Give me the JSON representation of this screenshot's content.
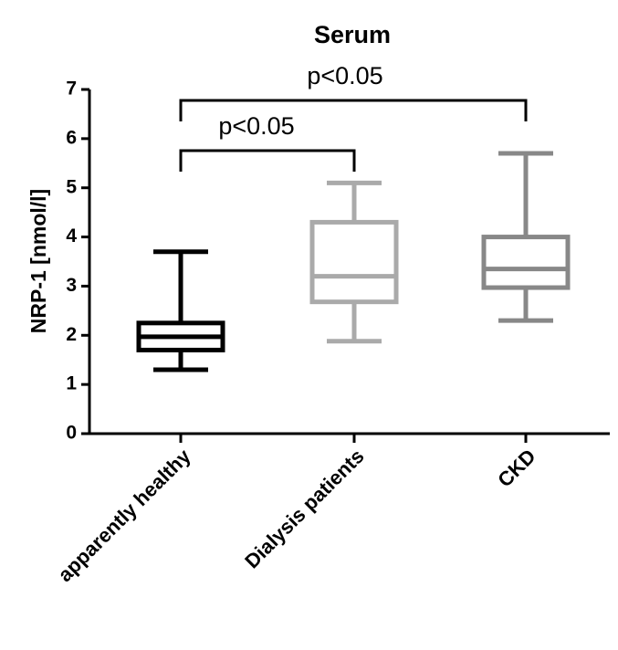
{
  "chart_data": {
    "type": "box",
    "title": "Serum",
    "ylabel": "NRP-1 [nmol/l]",
    "categories": [
      "apparently healthy",
      "Dialysis patients",
      "CKD"
    ],
    "boxes": [
      {
        "low": 1.3,
        "q1": 1.7,
        "median": 1.97,
        "q3": 2.25,
        "high": 3.7,
        "color": "#000000"
      },
      {
        "low": 1.88,
        "q1": 2.68,
        "median": 3.2,
        "q3": 4.3,
        "high": 5.1,
        "color": "#aaaaaa"
      },
      {
        "low": 2.3,
        "q1": 2.97,
        "median": 3.35,
        "q3": 4.0,
        "high": 5.7,
        "color": "#888888"
      }
    ],
    "ylim": [
      0,
      7
    ],
    "yticks": [
      0,
      1,
      2,
      3,
      4,
      5,
      6,
      7
    ],
    "annotations": [
      "p<0.05",
      "p<0.05"
    ]
  }
}
